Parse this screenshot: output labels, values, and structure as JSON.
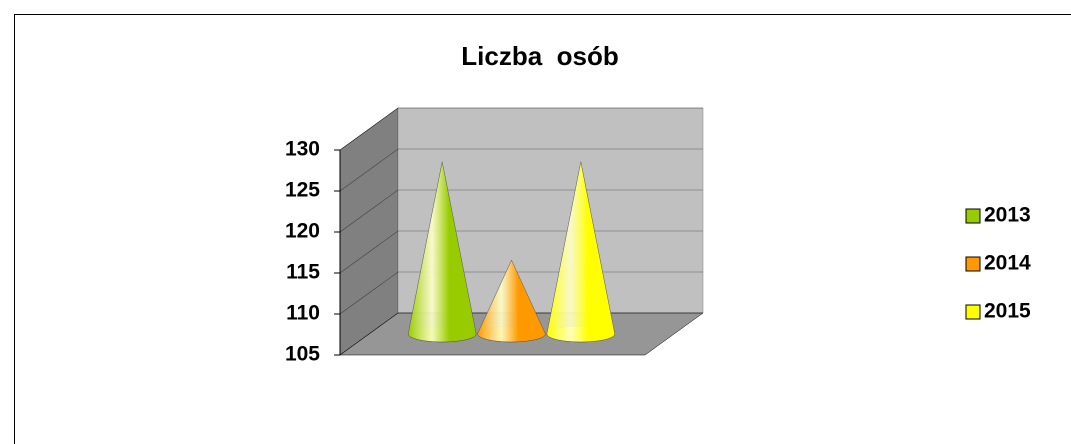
{
  "chart_data": {
    "type": "cone",
    "title": "Liczba  osób",
    "categories": [
      null
    ],
    "series": [
      {
        "name": "2013",
        "color": "#99cc00",
        "values": [
          126
        ]
      },
      {
        "name": "2014",
        "color": "#ff9900",
        "values": [
          114
        ]
      },
      {
        "name": "2015",
        "color": "#ffff00",
        "values": [
          126
        ]
      }
    ],
    "ylim": [
      105,
      130
    ],
    "yticks": [
      105,
      110,
      115,
      120,
      125,
      130
    ],
    "grid": true,
    "legend": "right"
  }
}
